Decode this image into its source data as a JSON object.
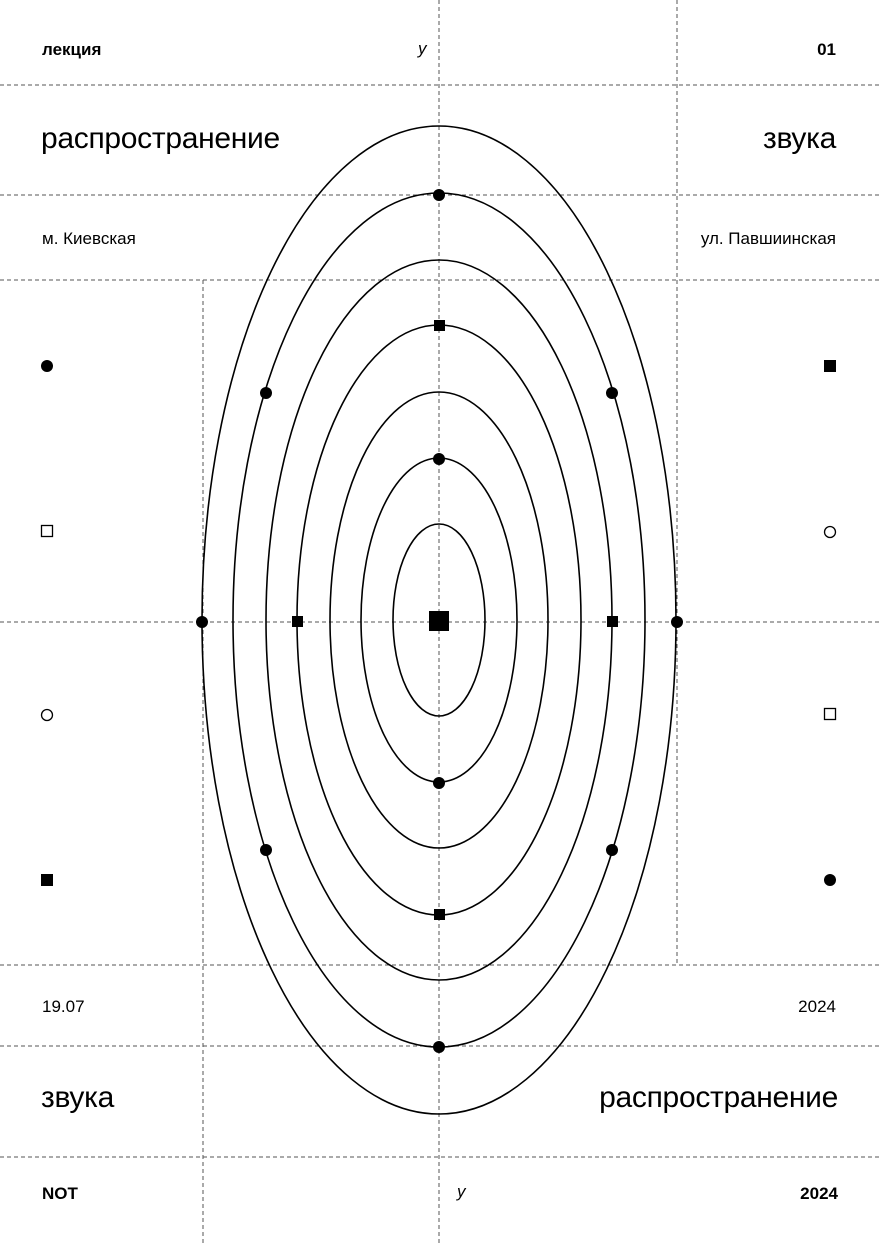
{
  "top": {
    "left": "лекция",
    "axis": "у",
    "right": "01"
  },
  "headline": {
    "left": "распространение",
    "right": "звука"
  },
  "location": {
    "left": "м. Киевская",
    "right": "ул. Павшиинская"
  },
  "date": {
    "left": "19.07",
    "right": "2024"
  },
  "headline_bottom": {
    "left": "звука",
    "right": "распространение"
  },
  "bottom": {
    "left": "NOT",
    "axis": "у",
    "right": "2024"
  },
  "side_left_markers": [
    "filled-circle",
    "hollow-square",
    "hollow-circle",
    "filled-square"
  ],
  "side_right_markers": [
    "filled-square",
    "hollow-circle",
    "hollow-square",
    "filled-circle"
  ],
  "colors": {
    "ink": "#000000",
    "background": "#ffffff",
    "grid": "#555555"
  }
}
